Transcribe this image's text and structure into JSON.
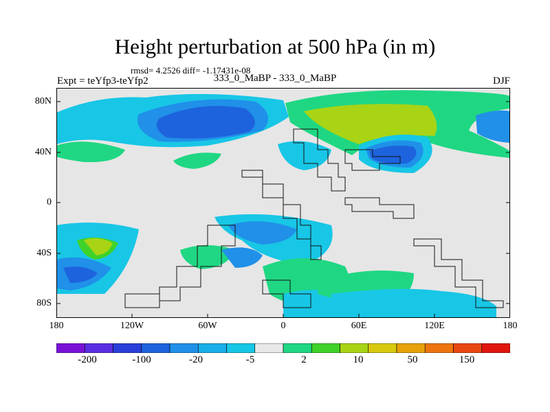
{
  "title": "Height perturbation at 500 hPa (in m)",
  "stats_line": "rmsd= 4.2526 diff= -1.17431e-08",
  "expt_label": "Expt = teYfp3-teYfp2",
  "case_label": "333_0_MaBP - 333_0_MaBP",
  "season": "DJF",
  "y_ticks": [
    "80N",
    "40N",
    "0",
    "40S",
    "80S"
  ],
  "x_ticks": [
    "180",
    "120W",
    "60W",
    "0",
    "60E",
    "120E",
    "180"
  ],
  "colorbar": {
    "labels": [
      "-200",
      "-100",
      "-20",
      "-5",
      "2",
      "10",
      "50",
      "150"
    ],
    "colors": [
      "#7a12d6",
      "#5a2ee0",
      "#2a3fd8",
      "#1d63dd",
      "#2090e8",
      "#1aaee8",
      "#18c6e6",
      "#e8e8e8",
      "#1fd783",
      "#3fd22a",
      "#a8d415",
      "#d8c80e",
      "#e6a20b",
      "#ec7510",
      "#e84814",
      "#e0160e"
    ]
  },
  "colors": {
    "background": "#e6e6e6",
    "deep_blue": "#1d63dd",
    "mid_blue": "#2090e8",
    "light_blue": "#18c6e6",
    "green": "#1fd783",
    "bright_green": "#3fd22a",
    "yellow_green": "#a8d415"
  }
}
